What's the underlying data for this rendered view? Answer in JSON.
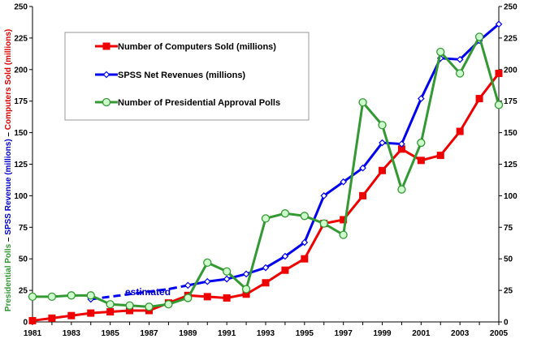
{
  "chart_data": {
    "type": "line",
    "title": "",
    "xlabel": "",
    "x_range": [
      1981,
      2005
    ],
    "x_ticks": [
      1981,
      1983,
      1985,
      1987,
      1989,
      1991,
      1993,
      1995,
      1997,
      1999,
      2001,
      2003,
      2005
    ],
    "ylim": [
      0,
      250
    ],
    "y_ticks": [
      0,
      25,
      50,
      75,
      100,
      125,
      150,
      175,
      200,
      225,
      250
    ],
    "y_axes": "left and right, same scale",
    "grid": false,
    "legend_placement": "top-left",
    "ylabel_parts": [
      {
        "text": "Presidential Polls",
        "color": "#339933"
      },
      {
        "text": "  –  ",
        "color": "#000000"
      },
      {
        "text": "SPSS Revenue (millions)",
        "color": "#0000cc"
      },
      {
        "text": "  –  ",
        "color": "#000000"
      },
      {
        "text": "Computers Sold (millions)",
        "color": "#dd0000"
      }
    ],
    "annotation": {
      "text": "estimated",
      "color": "#0000cc",
      "applies_to": "SPSS Net Revenues 1984-1989 (dashed)"
    },
    "series": [
      {
        "name": "Number of Computers Sold (millions)",
        "color": "#ee0000",
        "marker": "square",
        "x": [
          1981,
          1982,
          1983,
          1984,
          1985,
          1986,
          1987,
          1988,
          1989,
          1990,
          1991,
          1992,
          1993,
          1994,
          1995,
          1996,
          1997,
          1998,
          1999,
          2000,
          2001,
          2002,
          2003,
          2004,
          2005
        ],
        "values": [
          1,
          3,
          5,
          7,
          8,
          9,
          9,
          15,
          21,
          20,
          19,
          22,
          31,
          41,
          50,
          78,
          81,
          100,
          120,
          137,
          128,
          132,
          151,
          177,
          197
        ]
      },
      {
        "name": "SPSS Net Revenues (millions)",
        "color": "#0000ee",
        "marker": "diamond",
        "x": [
          1984,
          1985,
          1986,
          1987,
          1988,
          1989,
          1990,
          1991,
          1992,
          1993,
          1994,
          1995,
          1996,
          1997,
          1998,
          1999,
          2000,
          2001,
          2002,
          2003,
          2004,
          2005
        ],
        "values": [
          18,
          20,
          22,
          24,
          26,
          29,
          32,
          34,
          38,
          43,
          52,
          63,
          100,
          111,
          122,
          142,
          141,
          177,
          209,
          208,
          223,
          236
        ],
        "dashed_until": 1989
      },
      {
        "name": "Number of Presidential Approval Polls",
        "color": "#339933",
        "marker": "circle",
        "x": [
          1981,
          1982,
          1983,
          1984,
          1985,
          1986,
          1987,
          1988,
          1989,
          1990,
          1991,
          1992,
          1993,
          1994,
          1995,
          1996,
          1997,
          1998,
          1999,
          2000,
          2001,
          2002,
          2003,
          2004,
          2005
        ],
        "values": [
          20,
          20,
          21,
          21,
          14,
          13,
          12,
          14,
          19,
          47,
          40,
          26,
          82,
          86,
          84,
          78,
          69,
          174,
          156,
          105,
          142,
          214,
          197,
          226,
          172
        ]
      }
    ]
  }
}
